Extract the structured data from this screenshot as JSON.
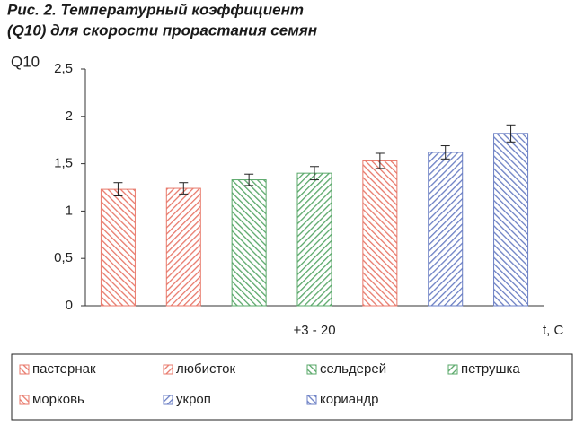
{
  "chart_data": {
    "type": "bar",
    "title": "Рис. 2. Температурный коэффициент",
    "subtitle": "(Q10) для скорости прорастания семян",
    "y_label": "Q10",
    "x_label": "t, C",
    "categories": [
      "+3 - 20"
    ],
    "series": [
      {
        "name": "пастернак",
        "color": "#e8796b",
        "values": [
          1.23
        ],
        "errors": [
          0.07
        ]
      },
      {
        "name": "любисток",
        "color": "#e8796b",
        "values": [
          1.24
        ],
        "errors": [
          0.06
        ]
      },
      {
        "name": "сельдерей",
        "color": "#5aa86a",
        "values": [
          1.33
        ],
        "errors": [
          0.06
        ]
      },
      {
        "name": "петрушка",
        "color": "#5aa86a",
        "values": [
          1.4
        ],
        "errors": [
          0.07
        ]
      },
      {
        "name": "морковь",
        "color": "#e8796b",
        "values": [
          1.53
        ],
        "errors": [
          0.08
        ]
      },
      {
        "name": "укроп",
        "color": "#6b7fc4",
        "values": [
          1.62
        ],
        "errors": [
          0.07
        ]
      },
      {
        "name": "кориандр",
        "color": "#6b7fc4",
        "values": [
          1.82
        ],
        "errors": [
          0.09
        ]
      }
    ],
    "ylim": [
      0,
      2.5
    ],
    "yticks": [
      0,
      {
        "value": 0.5,
        "label": "0,5"
      },
      1,
      {
        "value": 1.5,
        "label": "1,5"
      },
      2,
      {
        "value": 2.5,
        "label": "2,5"
      }
    ],
    "grid": false
  }
}
